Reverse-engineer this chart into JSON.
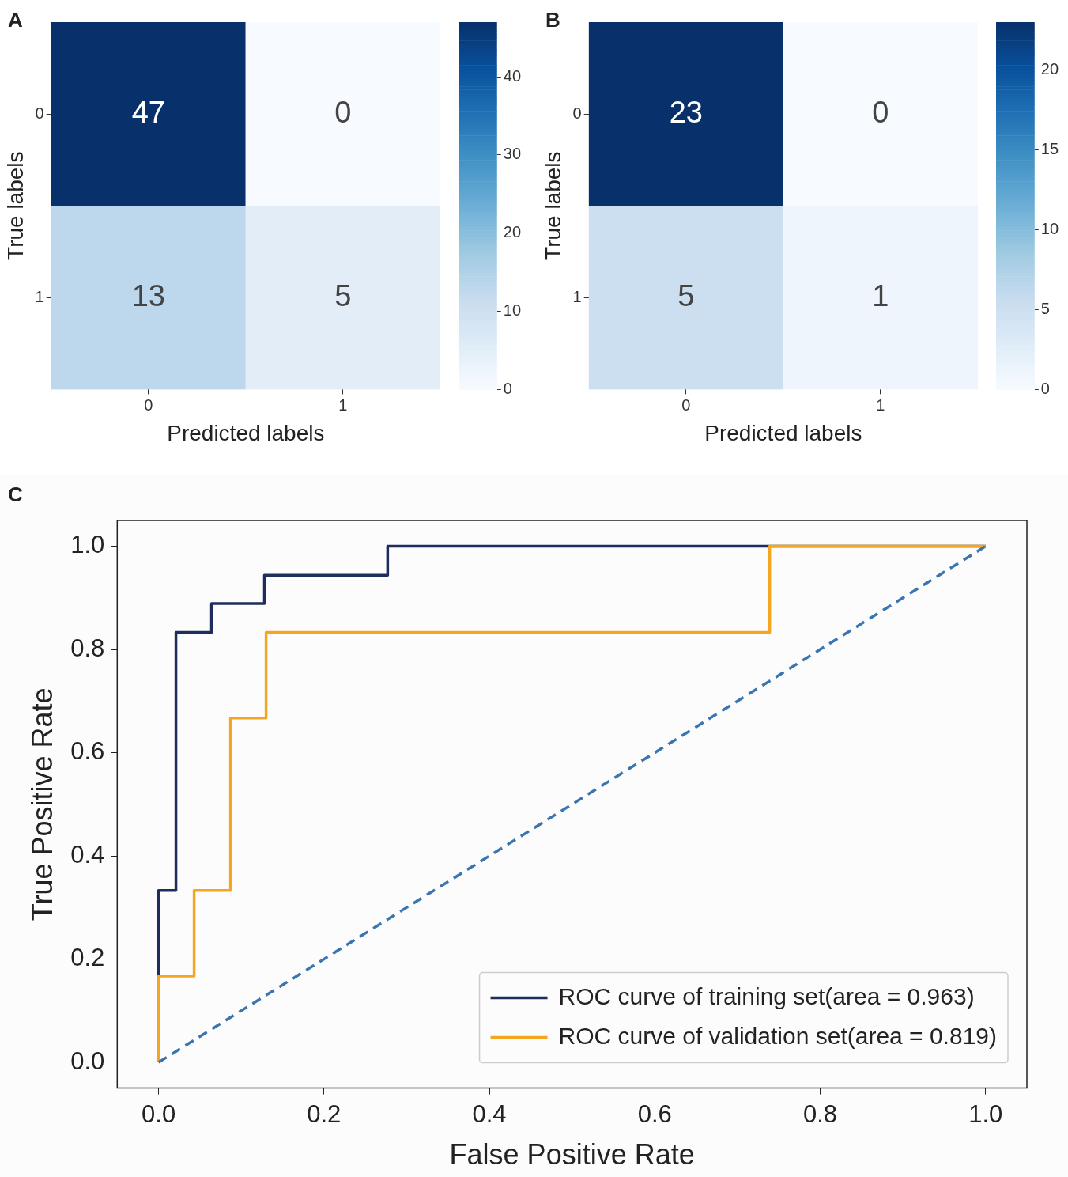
{
  "chart_data": [
    {
      "type": "heatmap",
      "title": "A",
      "xlabel": "Predicted labels",
      "ylabel": "True labels",
      "categories": [
        "0",
        "1"
      ],
      "y_categories": [
        "0",
        "1"
      ],
      "cells": [
        [
          47,
          0
        ],
        [
          13,
          5
        ]
      ],
      "clim": [
        0,
        47
      ],
      "cticks": [
        0,
        10,
        20,
        30,
        40
      ],
      "data_labels": true
    },
    {
      "type": "heatmap",
      "title": "B",
      "xlabel": "Predicted labels",
      "ylabel": "True labels",
      "categories": [
        "0",
        "1"
      ],
      "y_categories": [
        "0",
        "1"
      ],
      "cells": [
        [
          23,
          0
        ],
        [
          5,
          1
        ]
      ],
      "clim": [
        0,
        23
      ],
      "cticks": [
        0,
        5,
        10,
        15,
        20
      ],
      "data_labels": true
    },
    {
      "type": "line",
      "title": "C",
      "xlabel": "False Positive Rate",
      "ylabel": "True Positive Rate",
      "xlim": [
        -0.05,
        1.05
      ],
      "ylim": [
        -0.05,
        1.05
      ],
      "xticks": [
        {
          "value": 0,
          "label": "0.0"
        },
        {
          "value": 0.2,
          "label": "0.2"
        },
        {
          "value": 0.4,
          "label": "0.4"
        },
        {
          "value": 0.6,
          "label": "0.6"
        },
        {
          "value": 0.8,
          "label": "0.8"
        },
        {
          "value": 1,
          "label": "1.0"
        }
      ],
      "yticks": [
        {
          "value": 0,
          "label": "0.0"
        },
        {
          "value": 0.2,
          "label": "0.2"
        },
        {
          "value": 0.4,
          "label": "0.4"
        },
        {
          "value": 0.6,
          "label": "0.6"
        },
        {
          "value": 0.8,
          "label": "0.8"
        },
        {
          "value": 1,
          "label": "1.0"
        }
      ],
      "series": [
        {
          "name": "ROC curve of training set(area = 0.963)",
          "color": "#1f2d5e",
          "x": [
            0,
            0,
            0.021,
            0.021,
            0.064,
            0.064,
            0.128,
            0.128,
            0.277,
            0.277,
            1
          ],
          "values": [
            0,
            0.333,
            0.333,
            0.833,
            0.833,
            0.889,
            0.889,
            0.944,
            0.944,
            1,
            1
          ]
        },
        {
          "name": "ROC curve of validation set(area = 0.819)",
          "color": "#f4a621",
          "x": [
            0,
            0,
            0.043,
            0.043,
            0.087,
            0.087,
            0.13,
            0.13,
            0.739,
            0.739,
            1
          ],
          "values": [
            0,
            0.167,
            0.167,
            0.333,
            0.333,
            0.667,
            0.667,
            0.833,
            0.833,
            1,
            1
          ]
        },
        {
          "color": "#3a75b0",
          "line_style": "dashed",
          "x": [
            0,
            1
          ],
          "values": [
            0,
            1
          ]
        }
      ],
      "marker": "none",
      "line_style": "solid",
      "legend": "bottom right",
      "grid": false
    }
  ]
}
